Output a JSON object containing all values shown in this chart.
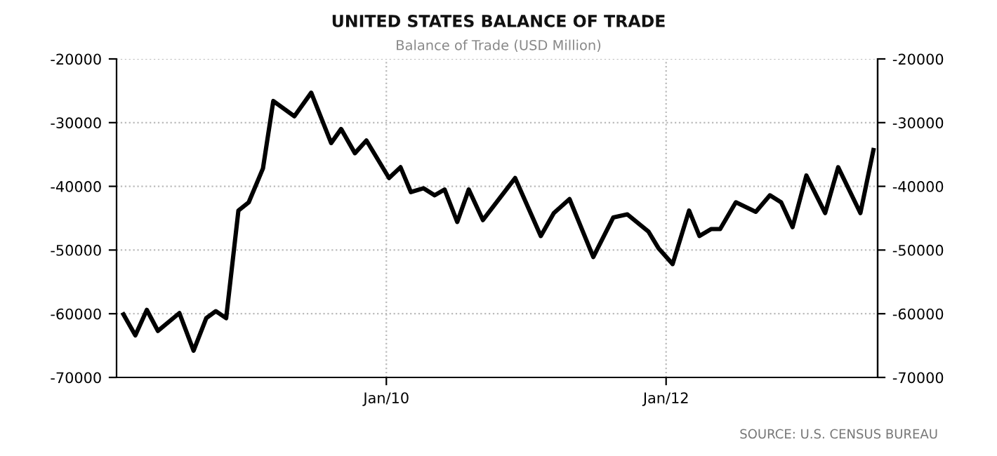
{
  "chart_data": {
    "type": "line",
    "title": "UNITED STATES BALANCE OF TRADE",
    "subtitle": "Balance of Trade (USD Million)",
    "annotations": [
      "SOURCE: U.S. CENSUS BUREAU"
    ],
    "x": [
      "2008-02-15",
      "2008-03-17",
      "2008-04-16",
      "2008-05-15",
      "2008-07-10",
      "2008-08-16",
      "2008-09-18",
      "2008-10-13",
      "2008-11-09",
      "2008-12-11",
      "2009-01-07",
      "2009-02-13",
      "2009-03-12",
      "2009-05-06",
      "2009-06-19",
      "2009-08-10",
      "2009-09-05",
      "2009-10-11",
      "2009-11-10",
      "2010-01-08",
      "2010-02-07",
      "2010-03-06",
      "2010-04-08",
      "2010-05-07",
      "2010-06-02",
      "2010-07-05",
      "2010-08-04",
      "2010-09-10",
      "2010-12-03",
      "2011-02-08",
      "2011-03-14",
      "2011-04-24",
      "2011-06-25",
      "2011-08-16",
      "2011-09-22",
      "2011-11-16",
      "2011-12-12",
      "2012-01-18",
      "2012-03-01",
      "2012-03-28",
      "2012-04-28",
      "2012-05-21",
      "2012-07-01",
      "2012-08-22",
      "2012-09-28",
      "2012-10-27",
      "2012-11-26",
      "2013-01-01",
      "2013-02-19",
      "2013-03-25",
      "2013-05-22",
      "2013-06-25"
    ],
    "series": [
      {
        "color": "#000000",
        "values": [
          -60100,
          -63400,
          -59400,
          -62700,
          -59900,
          -65800,
          -60700,
          -59600,
          -60700,
          -43800,
          -42500,
          -37200,
          -26600,
          -29000,
          -25300,
          -33200,
          -31000,
          -34800,
          -32800,
          -38700,
          -37000,
          -40900,
          -40300,
          -41400,
          -40500,
          -45600,
          -40500,
          -45300,
          -38700,
          -47800,
          -44200,
          -42000,
          -51100,
          -44900,
          -44400,
          -47100,
          -49700,
          -52200,
          -43800,
          -47800,
          -46700,
          -46700,
          -42500,
          -44000,
          -41400,
          -42500,
          -46400,
          -38300,
          -44200,
          -37000,
          -44200,
          -34300
        ]
      }
    ],
    "xlim": [
      "2008-01-28",
      "2013-07-06"
    ],
    "xticks": [
      {
        "value": "2010-01-01",
        "label": "Jan/10"
      },
      {
        "value": "2012-01-01",
        "label": "Jan/12"
      }
    ],
    "ylim": [
      -70000,
      -20000
    ],
    "yticks": [
      -70000,
      -60000,
      -50000,
      -40000,
      -30000,
      -20000
    ],
    "y2lim": [
      -70000,
      -20000
    ],
    "y2ticks": [
      -70000,
      -60000,
      -50000,
      -40000,
      -30000,
      -20000
    ],
    "grid": true,
    "line_style": "solid",
    "marker": "none"
  }
}
